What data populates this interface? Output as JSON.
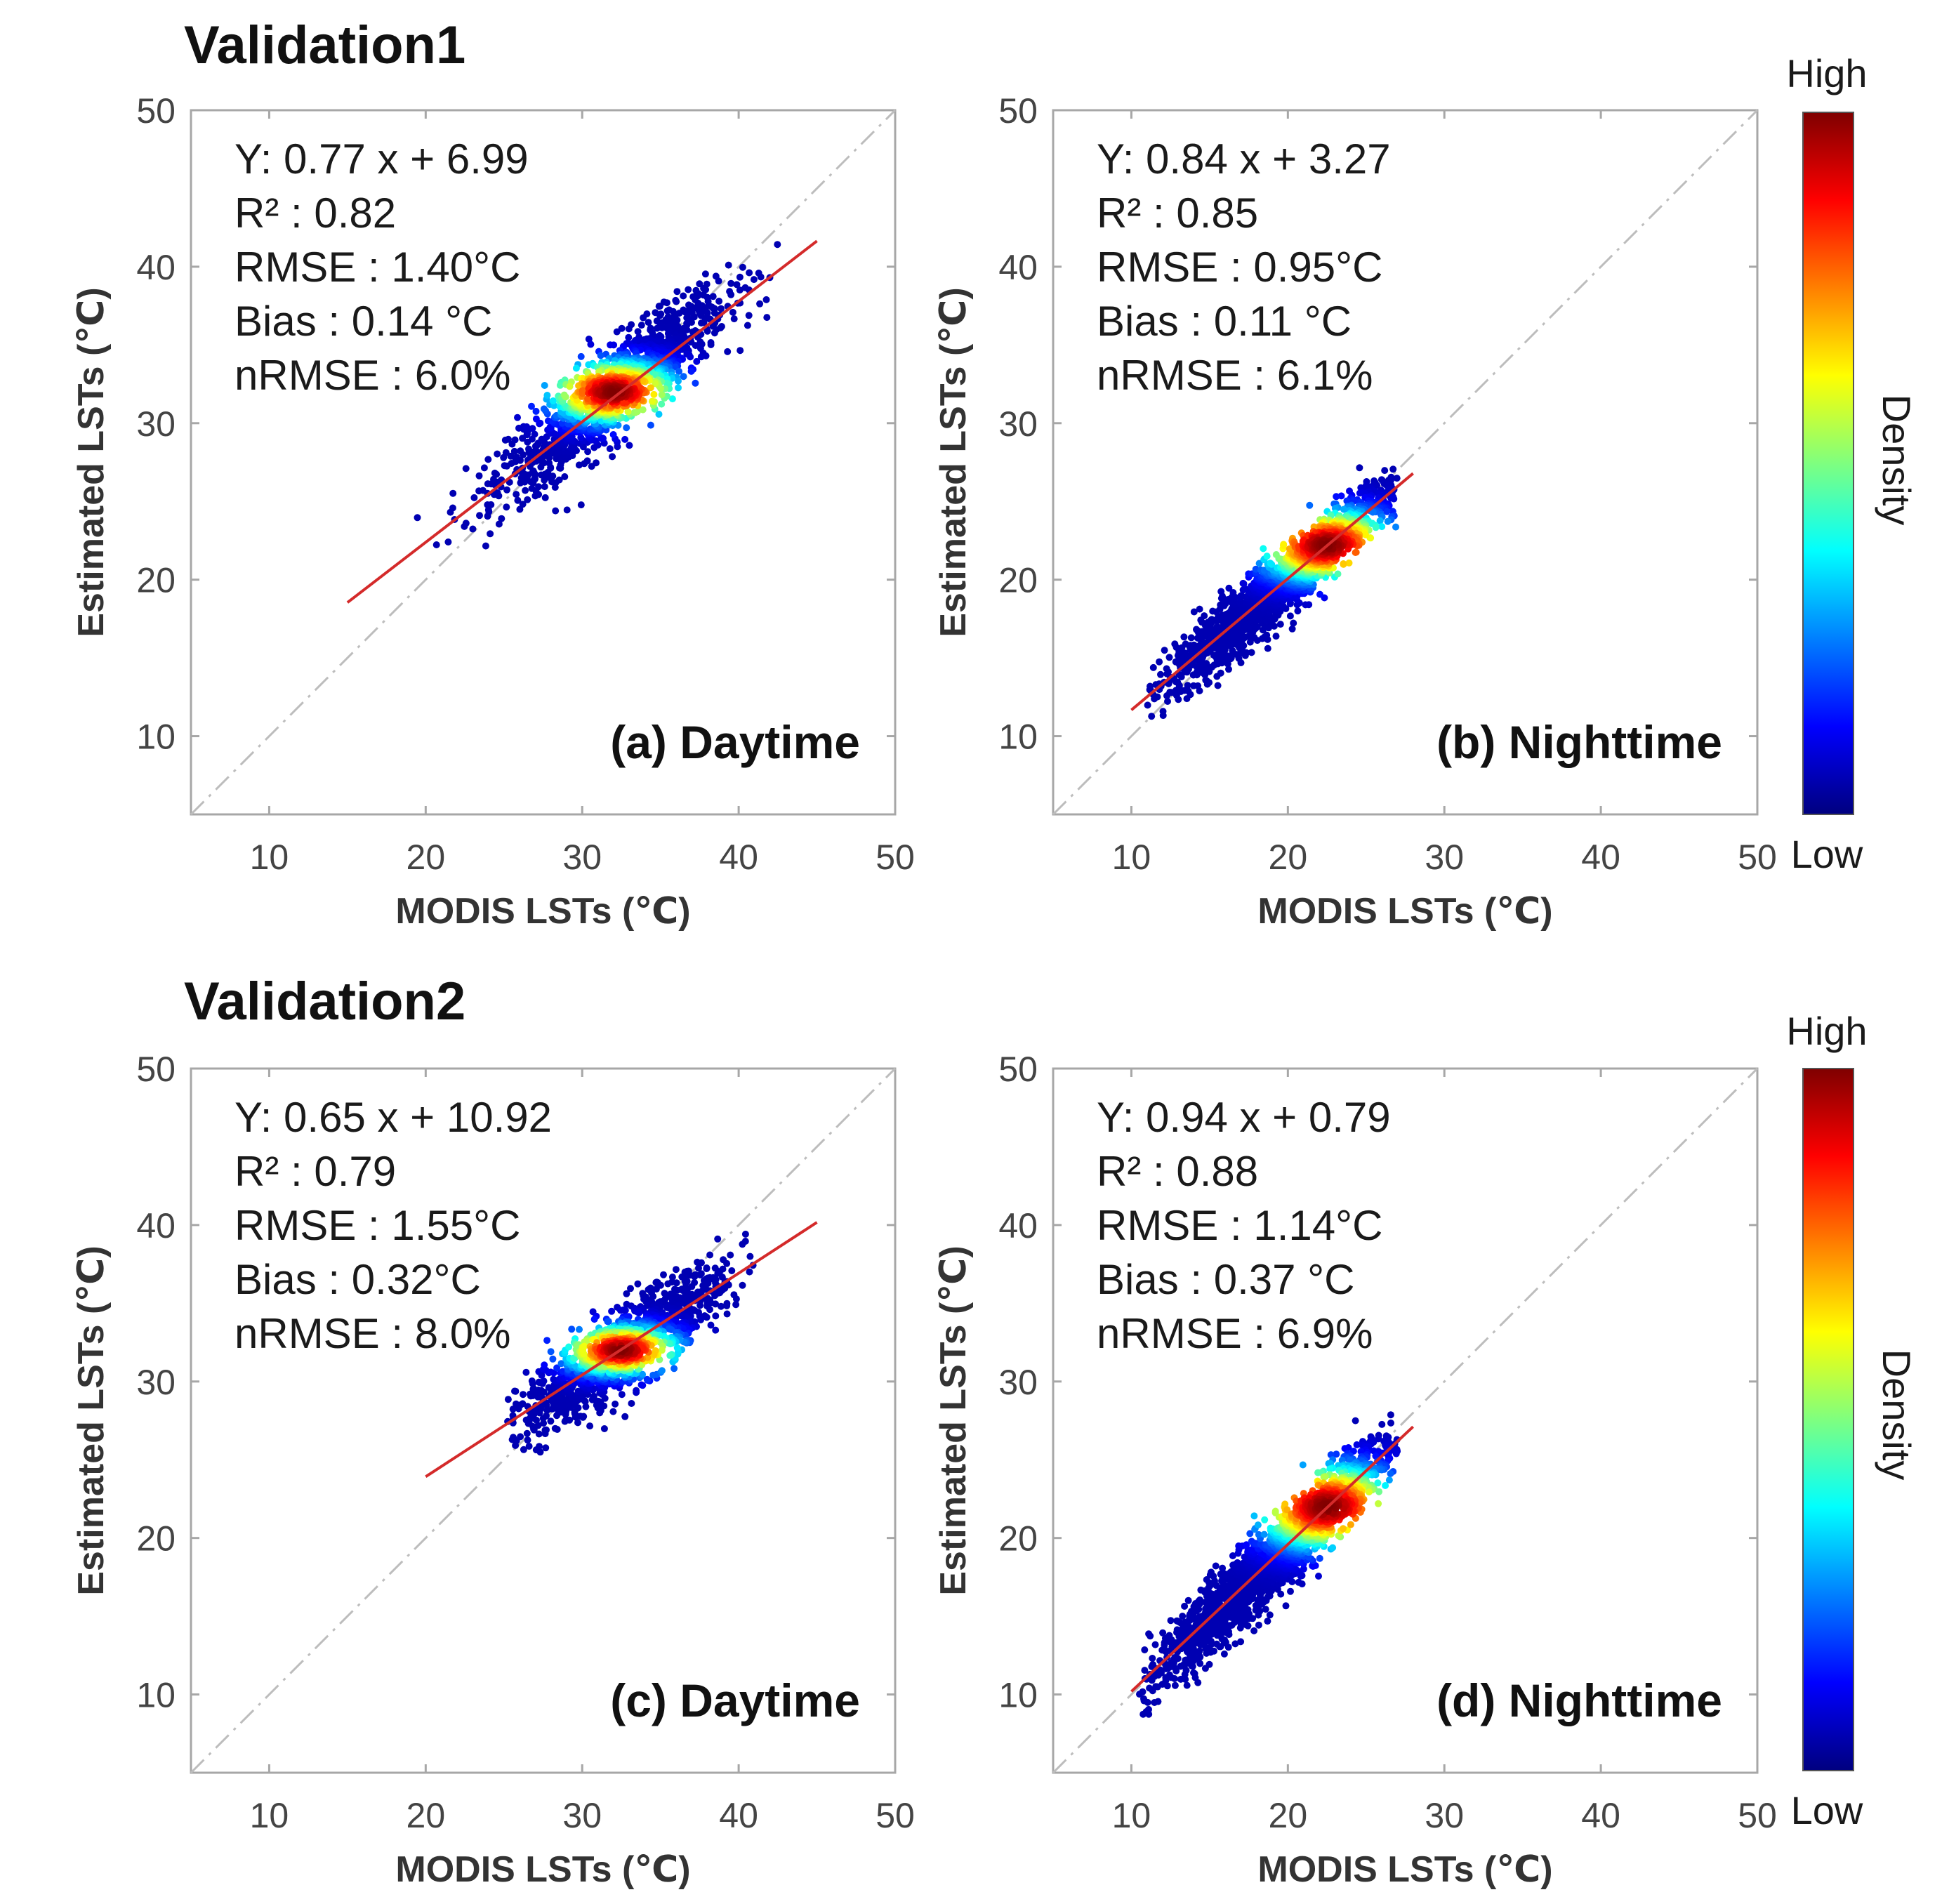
{
  "figure": {
    "group_titles": [
      "Validation1",
      "Validation2"
    ],
    "colorbar": {
      "high_label": "High",
      "low_label": "Low",
      "title": "Density",
      "colors": [
        "#00007f",
        "#0000ff",
        "#007fff",
        "#00ffff",
        "#7fff7f",
        "#ffff00",
        "#ff7f00",
        "#ff0000",
        "#7f0000"
      ]
    },
    "line_colors": {
      "fit": "#d42a2a",
      "one_to_one": "#bdbdbd"
    }
  },
  "chart_data": [
    {
      "type": "scatter",
      "panel_label": "(a) Daytime",
      "group": "Validation1",
      "xlabel": "MODIS LSTs (℃)",
      "ylabel": "Estimated LSTs (℃)",
      "xlim": [
        5,
        50
      ],
      "ylim": [
        5,
        50
      ],
      "xticks": [
        10,
        20,
        30,
        40,
        50
      ],
      "yticks": [
        10,
        20,
        30,
        40,
        50
      ],
      "stats": [
        "Y: 0.77 x + 6.99",
        "R² : 0.82",
        "RMSE : 1.40°C",
        "Bias : 0.14 °C",
        "nRMSE : 6.0%"
      ],
      "fit": {
        "slope": 0.77,
        "intercept": 6.99,
        "x_range": [
          15,
          45
        ]
      },
      "cloud": {
        "center": [
          32,
          32
        ],
        "x_sd": 3.6,
        "along_slope": 0.77,
        "perp_sd": 1.4,
        "x_range": [
          18,
          43
        ],
        "count": 1400,
        "peak": [
          32,
          32
        ]
      }
    },
    {
      "type": "scatter",
      "panel_label": "(b) Nighttime",
      "group": "Validation1",
      "xlabel": "MODIS LSTs (℃)",
      "ylabel": "Estimated LSTs (℃)",
      "xlim": [
        5,
        50
      ],
      "ylim": [
        5,
        50
      ],
      "xticks": [
        10,
        20,
        30,
        40,
        50
      ],
      "yticks": [
        10,
        20,
        30,
        40,
        50
      ],
      "stats": [
        "Y: 0.84 x + 3.27",
        "R² : 0.85",
        "RMSE : 0.95°C",
        "Bias : 0.11 °C",
        "nRMSE : 6.1%"
      ],
      "fit": {
        "slope": 0.84,
        "intercept": 3.27,
        "x_range": [
          10,
          28
        ]
      },
      "cloud": {
        "center": [
          20,
          20
        ],
        "x_sd": 3.8,
        "along_slope": 0.84,
        "perp_sd": 1.0,
        "x_range": [
          11,
          27
        ],
        "count": 1900,
        "peak": [
          22.5,
          22.2
        ]
      }
    },
    {
      "type": "scatter",
      "panel_label": "(c) Daytime",
      "group": "Validation2",
      "xlabel": "MODIS LSTs (℃)",
      "ylabel": "Estimated LSTs (℃)",
      "xlim": [
        5,
        50
      ],
      "ylim": [
        5,
        50
      ],
      "xticks": [
        10,
        20,
        30,
        40,
        50
      ],
      "yticks": [
        10,
        20,
        30,
        40,
        50
      ],
      "stats": [
        "Y: 0.65 x + 10.92",
        "R² : 0.79",
        "RMSE : 1.55°C",
        "Bias : 0.32°C",
        "nRMSE : 8.0%"
      ],
      "fit": {
        "slope": 0.65,
        "intercept": 10.92,
        "x_range": [
          20,
          45
        ]
      },
      "cloud": {
        "center": [
          32.5,
          32
        ],
        "x_sd": 3.2,
        "along_slope": 0.65,
        "perp_sd": 1.3,
        "x_range": [
          25,
          41
        ],
        "count": 1300,
        "peak": [
          32.5,
          32
        ]
      }
    },
    {
      "type": "scatter",
      "panel_label": "(d) Nighttime",
      "group": "Validation2",
      "xlabel": "MODIS LSTs (℃)",
      "ylabel": "Estimated LSTs (℃)",
      "xlim": [
        5,
        50
      ],
      "ylim": [
        5,
        50
      ],
      "xticks": [
        10,
        20,
        30,
        40,
        50
      ],
      "yticks": [
        10,
        20,
        30,
        40,
        50
      ],
      "stats": [
        "Y: 0.94 x + 0.79",
        "R² : 0.88",
        "RMSE : 1.14°C",
        "Bias : 0.37 °C",
        "nRMSE : 6.9%"
      ],
      "fit": {
        "slope": 0.94,
        "intercept": 0.79,
        "x_range": [
          10,
          28
        ]
      },
      "cloud": {
        "center": [
          19.5,
          19
        ],
        "x_sd": 4.0,
        "along_slope": 0.94,
        "perp_sd": 1.2,
        "x_range": [
          10.5,
          27
        ],
        "count": 2000,
        "peak": [
          22.5,
          22
        ]
      }
    }
  ]
}
